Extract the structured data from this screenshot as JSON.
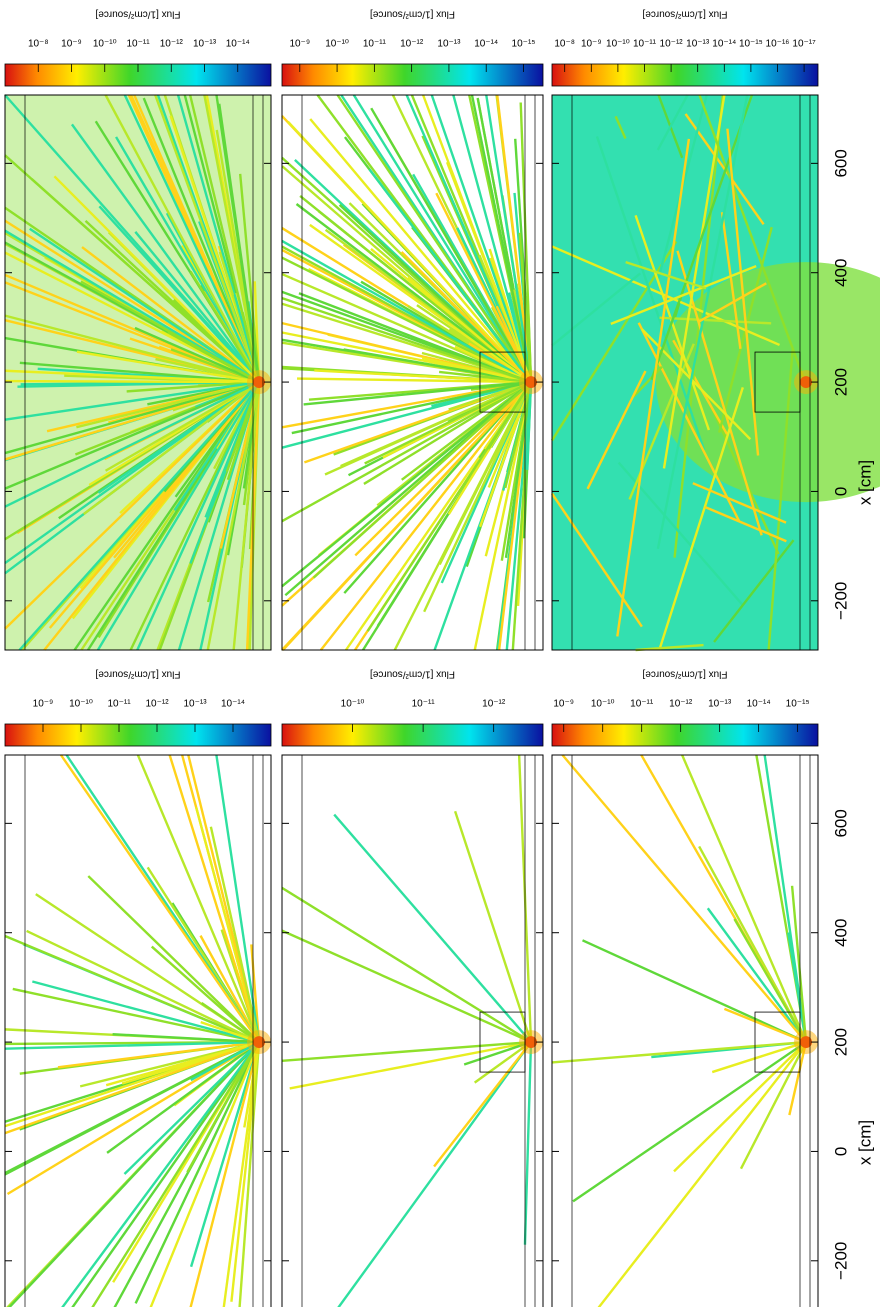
{
  "chart_data": [
    {
      "type": "heatmap",
      "colorbar_label": "Flux [1/cm²/source]",
      "clim": [
        1e-07,
        1e-15
      ],
      "log": true,
      "colorbar_ticks": [
        {
          "value": 1e-08,
          "label": "10⁻⁸"
        },
        {
          "value": 1e-09,
          "label": "10⁻⁹"
        },
        {
          "value": 1e-10,
          "label": "10⁻¹⁰"
        },
        {
          "value": 1e-11,
          "label": "10⁻¹¹"
        },
        {
          "value": 1e-12,
          "label": "10⁻¹²"
        },
        {
          "value": 1e-13,
          "label": "10⁻¹³"
        },
        {
          "value": 1e-14,
          "label": "10⁻¹⁴"
        }
      ],
      "xlim": [
        -290,
        725
      ],
      "xticks": [
        -200,
        0,
        200,
        400,
        600
      ]
    },
    {
      "type": "heatmap",
      "colorbar_label": "Flux [1/cm²/source]",
      "clim": [
        3e-09,
        3e-16
      ],
      "log": true,
      "colorbar_ticks": [
        {
          "value": 1e-09,
          "label": "10⁻⁹"
        },
        {
          "value": 1e-10,
          "label": "10⁻¹⁰"
        },
        {
          "value": 1e-11,
          "label": "10⁻¹¹"
        },
        {
          "value": 1e-12,
          "label": "10⁻¹²"
        },
        {
          "value": 1e-13,
          "label": "10⁻¹³"
        },
        {
          "value": 1e-14,
          "label": "10⁻¹⁴"
        },
        {
          "value": 1e-15,
          "label": "10⁻¹⁵"
        }
      ],
      "xlim": [
        -290,
        725
      ],
      "xticks": [
        -200,
        0,
        200,
        400,
        600
      ]
    },
    {
      "type": "heatmap",
      "colorbar_label": "Flux [1/cm²/source]",
      "clim": [
        3e-08,
        3e-18
      ],
      "log": true,
      "colorbar_ticks": [
        {
          "value": 1e-08,
          "label": "10⁻⁸"
        },
        {
          "value": 1e-09,
          "label": "10⁻⁹"
        },
        {
          "value": 1e-10,
          "label": "10⁻¹⁰"
        },
        {
          "value": 1e-11,
          "label": "10⁻¹¹"
        },
        {
          "value": 1e-12,
          "label": "10⁻¹²"
        },
        {
          "value": 1e-13,
          "label": "10⁻¹³"
        },
        {
          "value": 1e-14,
          "label": "10⁻¹⁴"
        },
        {
          "value": 1e-15,
          "label": "10⁻¹⁵"
        },
        {
          "value": 1e-16,
          "label": "10⁻¹⁶"
        },
        {
          "value": 1e-17,
          "label": "10⁻¹⁷"
        }
      ],
      "xlim": [
        -290,
        725
      ],
      "xlabel": "x [cm]",
      "xticks": [
        {
          "value": -200,
          "label": "−200"
        },
        0,
        200,
        400,
        600
      ]
    },
    {
      "type": "heatmap",
      "colorbar_label": "Flux [1/cm²/source]",
      "clim": [
        1e-08,
        1e-15
      ],
      "log": true,
      "colorbar_ticks": [
        {
          "value": 1e-09,
          "label": "10⁻⁹"
        },
        {
          "value": 1e-10,
          "label": "10⁻¹⁰"
        },
        {
          "value": 1e-11,
          "label": "10⁻¹¹"
        },
        {
          "value": 1e-12,
          "label": "10⁻¹²"
        },
        {
          "value": 1e-13,
          "label": "10⁻¹³"
        },
        {
          "value": 1e-14,
          "label": "10⁻¹⁴"
        }
      ],
      "xlim": [
        -290,
        725
      ],
      "xticks": [
        -200,
        0,
        200,
        400,
        600
      ]
    },
    {
      "type": "heatmap",
      "colorbar_label": "Flux [1/cm²/source]",
      "clim": [
        1e-09,
        2e-13
      ],
      "log": true,
      "colorbar_ticks": [
        {
          "value": 1e-10,
          "label": "10⁻¹⁰"
        },
        {
          "value": 1e-11,
          "label": "10⁻¹¹"
        },
        {
          "value": 1e-12,
          "label": "10⁻¹²"
        }
      ],
      "xlim": [
        -290,
        725
      ],
      "xticks": [
        -200,
        0,
        200,
        400,
        600
      ]
    },
    {
      "type": "heatmap",
      "colorbar_label": "Flux [1/cm²/source]",
      "clim": [
        2e-09,
        3e-16
      ],
      "log": true,
      "colorbar_ticks": [
        {
          "value": 1e-09,
          "label": "10⁻⁹"
        },
        {
          "value": 1e-10,
          "label": "10⁻¹⁰"
        },
        {
          "value": 1e-11,
          "label": "10⁻¹¹"
        },
        {
          "value": 1e-12,
          "label": "10⁻¹²"
        },
        {
          "value": 1e-13,
          "label": "10⁻¹³"
        },
        {
          "value": 1e-14,
          "label": "10⁻¹⁴"
        },
        {
          "value": 1e-15,
          "label": "10⁻¹⁵"
        }
      ],
      "xlim": [
        -290,
        725
      ],
      "xlabel": "x [cm]",
      "xticks": [
        {
          "value": -200,
          "label": "−200"
        },
        0,
        200,
        400,
        600
      ]
    }
  ]
}
